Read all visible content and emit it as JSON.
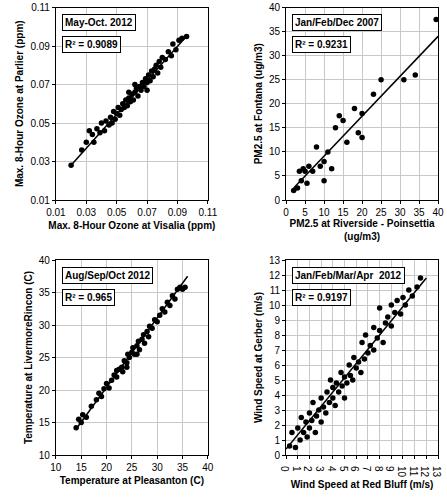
{
  "chart_data": [
    {
      "type": "scatter",
      "title": "May-Oct. 2012",
      "annotations": [
        "R² = 0.9089"
      ],
      "x_label": "Max. 8-Hour Ozone at Visalia (ppm)",
      "y_label": "Max. 8-Hour Ozone at Parlier (ppm)",
      "xlim": [
        0.01,
        0.11
      ],
      "ylim": [
        0.01,
        0.11
      ],
      "xticks": [
        0.01,
        0.03,
        0.05,
        0.07,
        0.09,
        0.11
      ],
      "yticks": [
        0.01,
        0.03,
        0.05,
        0.07,
        0.09,
        0.11
      ],
      "grid": true,
      "series": [
        {
          "type": "scatter",
          "marker": "circle",
          "color": "#000000",
          "x": [
            0.02,
            0.027,
            0.03,
            0.032,
            0.034,
            0.035,
            0.037,
            0.039,
            0.04,
            0.042,
            0.043,
            0.045,
            0.046,
            0.047,
            0.048,
            0.049,
            0.05,
            0.051,
            0.052,
            0.053,
            0.054,
            0.055,
            0.056,
            0.057,
            0.058,
            0.059,
            0.06,
            0.061,
            0.062,
            0.063,
            0.064,
            0.065,
            0.066,
            0.067,
            0.068,
            0.069,
            0.07,
            0.071,
            0.072,
            0.073,
            0.074,
            0.075,
            0.076,
            0.077,
            0.078,
            0.079,
            0.08,
            0.082,
            0.084,
            0.086,
            0.087,
            0.089,
            0.091,
            0.093,
            0.096,
            0.062,
            0.058,
            0.07
          ],
          "values": [
            0.028,
            0.036,
            0.04,
            0.046,
            0.044,
            0.04,
            0.047,
            0.045,
            0.05,
            0.046,
            0.051,
            0.049,
            0.053,
            0.05,
            0.056,
            0.052,
            0.055,
            0.058,
            0.054,
            0.057,
            0.06,
            0.058,
            0.062,
            0.059,
            0.063,
            0.061,
            0.065,
            0.062,
            0.066,
            0.068,
            0.064,
            0.069,
            0.067,
            0.071,
            0.069,
            0.073,
            0.071,
            0.075,
            0.072,
            0.077,
            0.074,
            0.078,
            0.08,
            0.076,
            0.082,
            0.079,
            0.084,
            0.083,
            0.087,
            0.085,
            0.091,
            0.088,
            0.093,
            0.094,
            0.095,
            0.07,
            0.066,
            0.067
          ]
        },
        {
          "type": "line",
          "line_style": "solid",
          "color": "#000000",
          "x": [
            0.02,
            0.097
          ],
          "values": [
            0.028,
            0.096
          ]
        }
      ]
    },
    {
      "type": "scatter",
      "title": "Jan/Feb/Dec 2007",
      "annotations": [
        "R² = 0.9231"
      ],
      "x_label": "PM2.5 at Riverside - Poinsettia\n(ug/m3)",
      "y_label": "PM2.5 at Fontana (ug/m3)",
      "xlim": [
        0,
        40
      ],
      "ylim": [
        0,
        40
      ],
      "xticks": [
        0,
        5,
        10,
        15,
        20,
        25,
        30,
        35,
        40
      ],
      "yticks": [
        0,
        5,
        10,
        15,
        20,
        25,
        30,
        35,
        40
      ],
      "grid": true,
      "series": [
        {
          "type": "scatter",
          "marker": "circle",
          "color": "#000000",
          "x": [
            2,
            3,
            3.5,
            4,
            4.5,
            5,
            5.5,
            6,
            7,
            8,
            9,
            10,
            10,
            11,
            12,
            13,
            14,
            15,
            16,
            18,
            19,
            20,
            20,
            23,
            25,
            31,
            34,
            39.5
          ],
          "values": [
            2,
            2.5,
            6,
            4,
            6.5,
            6,
            3.5,
            7,
            6,
            11,
            7,
            4,
            8,
            10,
            6.5,
            15,
            17.5,
            16.5,
            12,
            19,
            14,
            13,
            18,
            22,
            25,
            25,
            26,
            37.5
          ]
        },
        {
          "type": "line",
          "line_style": "solid",
          "color": "#000000",
          "x": [
            2,
            40
          ],
          "values": [
            2.5,
            34
          ]
        }
      ]
    },
    {
      "type": "scatter",
      "title": "Aug/Sep/Oct 2012",
      "annotations": [
        "R² = 0.965"
      ],
      "x_label": "Temperature at Pleasanton (C)",
      "y_label": "Temperature at LivermoreRincon (C)",
      "xlim": [
        10,
        40
      ],
      "ylim": [
        10,
        40
      ],
      "xticks": [
        10,
        15,
        20,
        25,
        30,
        35,
        40
      ],
      "yticks": [
        10,
        15,
        20,
        25,
        30,
        35,
        40
      ],
      "grid": true,
      "series": [
        {
          "type": "scatter",
          "marker": "circle",
          "color": "#000000",
          "x": [
            14,
            14.5,
            15,
            15.3,
            16,
            17,
            18,
            18.5,
            19,
            19.5,
            20,
            20.5,
            21,
            21.5,
            22,
            22.5,
            23,
            23.2,
            23.5,
            24,
            24.2,
            24.5,
            25,
            25.2,
            25.5,
            26,
            26.3,
            26.5,
            27,
            27.3,
            27.5,
            28,
            28.3,
            28.5,
            29,
            29.5,
            30,
            30.5,
            31,
            31.5,
            32,
            32.5,
            33,
            33.5,
            34,
            34.5,
            35,
            35.5,
            22,
            26,
            24
          ],
          "values": [
            14.2,
            15.5,
            15,
            16.2,
            15.8,
            17.5,
            18.5,
            19.5,
            19,
            20.2,
            21,
            20.3,
            21.5,
            22.3,
            22,
            23.2,
            23.5,
            22.8,
            24.5,
            24.2,
            25.5,
            25,
            25.8,
            26.5,
            25.5,
            26.8,
            27.5,
            26.2,
            27.8,
            28.5,
            27.2,
            29,
            28.2,
            29.8,
            29.5,
            30.8,
            30.5,
            31.5,
            32.5,
            32,
            33.5,
            33,
            34.5,
            34,
            35.5,
            35.8,
            35.5,
            35.8,
            23,
            25.5,
            23.5
          ]
        },
        {
          "type": "line",
          "line_style": "solid",
          "color": "#000000",
          "x": [
            14,
            36
          ],
          "values": [
            14,
            37.5
          ]
        }
      ]
    },
    {
      "type": "scatter",
      "title": "Jan/Feb/Mar/Apr  2012",
      "annotations": [
        "R² = 0.9197"
      ],
      "x_label": "Wind Speed at Red Bluff (m/s)",
      "y_label": "Wind Speed at Gerber (m/s)",
      "xlim": [
        0,
        13
      ],
      "ylim": [
        0,
        13
      ],
      "xticks": [
        0,
        1,
        2,
        3,
        4,
        5,
        6,
        7,
        8,
        9,
        10,
        11,
        12,
        13
      ],
      "yticks": [
        0,
        1,
        2,
        3,
        4,
        5,
        6,
        7,
        8,
        9,
        10,
        11,
        12,
        13
      ],
      "grid": true,
      "series": [
        {
          "type": "scatter",
          "marker": "circle",
          "color": "#000000",
          "x": [
            0.3,
            0.5,
            0.8,
            1,
            1.2,
            1.3,
            1.5,
            1.7,
            1.8,
            2,
            2,
            2.2,
            2.3,
            2.5,
            2.6,
            2.8,
            3,
            3,
            3.2,
            3.4,
            3.5,
            3.7,
            3.8,
            4,
            4,
            4.2,
            4.3,
            4.5,
            4.7,
            4.8,
            5,
            5,
            5.2,
            5.4,
            5.5,
            5.7,
            5.8,
            6,
            6.2,
            6.4,
            6.5,
            6.7,
            6.8,
            7,
            7.2,
            7.5,
            7.5,
            7.8,
            8,
            8,
            8.3,
            8.5,
            8.7,
            9,
            9,
            9.3,
            9.5,
            9.8,
            10,
            10.2,
            10.5,
            10.8,
            11.2,
            11.5
          ],
          "values": [
            0.6,
            1.5,
            0.5,
            1.8,
            1,
            2.5,
            1.5,
            2.2,
            1.2,
            2.8,
            1.8,
            2.3,
            3.5,
            1.5,
            2.6,
            3,
            2.2,
            3.8,
            3.2,
            2.8,
            4.2,
            3.5,
            5,
            3.8,
            4.5,
            3.3,
            4.8,
            4.2,
            5.5,
            4.6,
            5.2,
            3.8,
            4.8,
            6,
            5.3,
            5,
            6.5,
            5.8,
            6.2,
            5.5,
            7.5,
            6.4,
            8,
            6.8,
            7.3,
            7,
            8.5,
            7.8,
            8.3,
            9.8,
            7.5,
            8.8,
            9.2,
            8.6,
            10,
            9.5,
            10.3,
            9.4,
            10.5,
            10,
            11,
            10.6,
            11.2,
            11.8
          ]
        },
        {
          "type": "line",
          "line_style": "solid",
          "color": "#000000",
          "x": [
            0,
            12
          ],
          "values": [
            0.4,
            11.8
          ]
        }
      ]
    }
  ]
}
